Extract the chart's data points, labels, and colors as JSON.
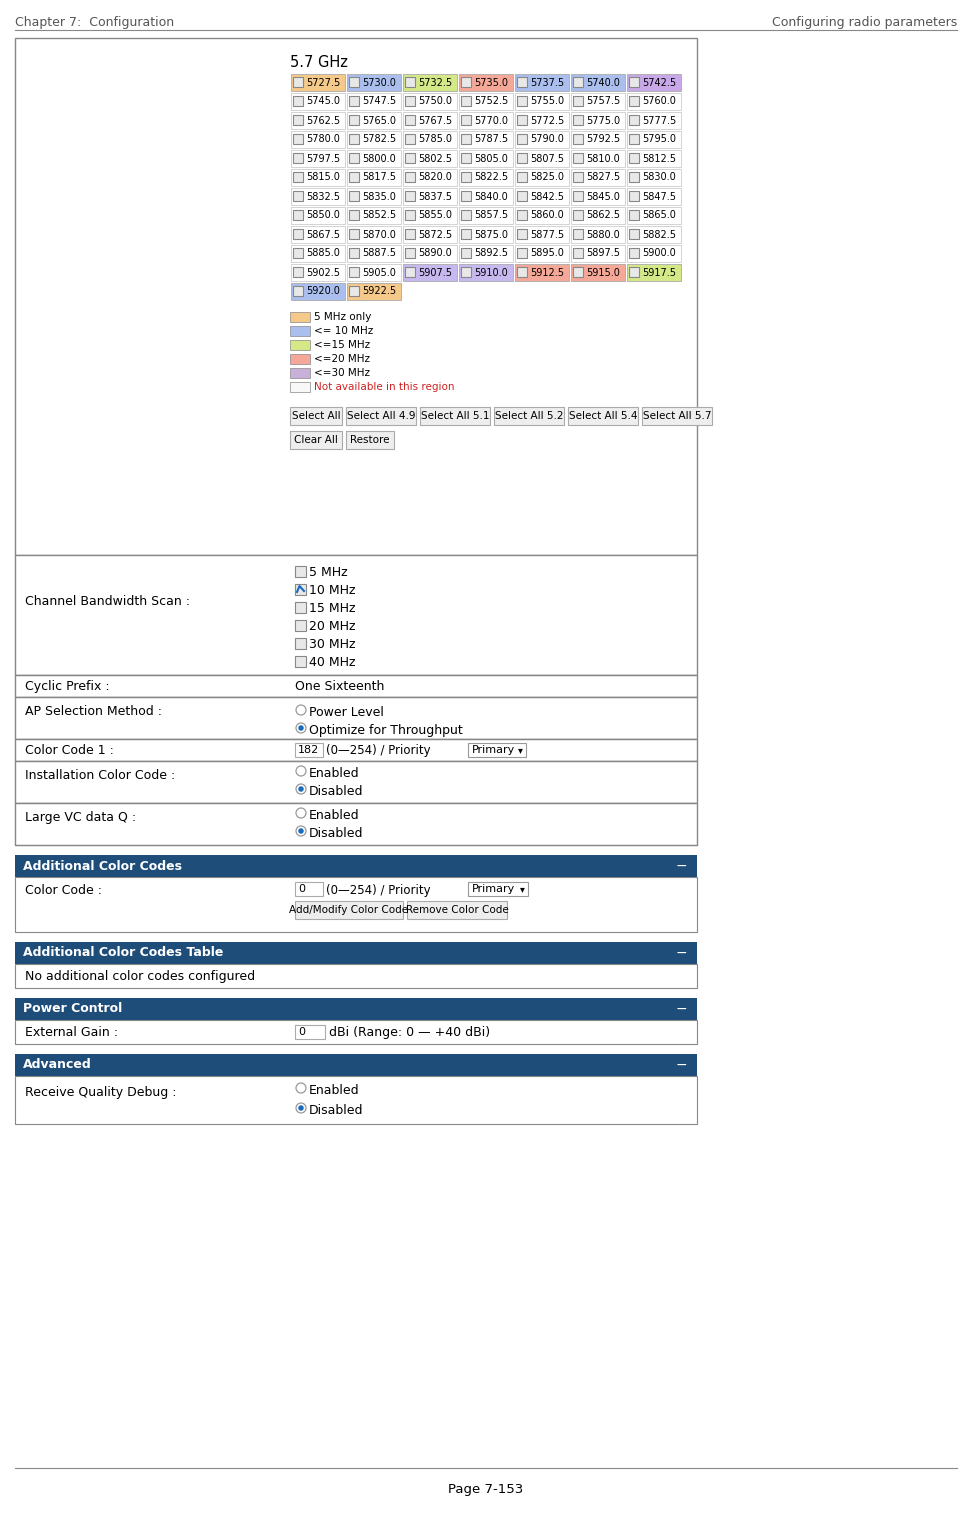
{
  "header_left": "Chapter 7:  Configuration",
  "header_right": "Configuring radio parameters",
  "footer": "Page 7-153",
  "section_title": "5.7 GHz",
  "freq_rows": [
    [
      "5727.5",
      "5730.0",
      "5732.5",
      "5735.0",
      "5737.5",
      "5740.0",
      "5742.5"
    ],
    [
      "5745.0",
      "5747.5",
      "5750.0",
      "5752.5",
      "5755.0",
      "5757.5",
      "5760.0"
    ],
    [
      "5762.5",
      "5765.0",
      "5767.5",
      "5770.0",
      "5772.5",
      "5775.0",
      "5777.5"
    ],
    [
      "5780.0",
      "5782.5",
      "5785.0",
      "5787.5",
      "5790.0",
      "5792.5",
      "5795.0"
    ],
    [
      "5797.5",
      "5800.0",
      "5802.5",
      "5805.0",
      "5807.5",
      "5810.0",
      "5812.5"
    ],
    [
      "5815.0",
      "5817.5",
      "5820.0",
      "5822.5",
      "5825.0",
      "5827.5",
      "5830.0"
    ],
    [
      "5832.5",
      "5835.0",
      "5837.5",
      "5840.0",
      "5842.5",
      "5845.0",
      "5847.5"
    ],
    [
      "5850.0",
      "5852.5",
      "5855.0",
      "5857.5",
      "5860.0",
      "5862.5",
      "5865.0"
    ],
    [
      "5867.5",
      "5870.0",
      "5872.5",
      "5875.0",
      "5877.5",
      "5880.0",
      "5882.5"
    ],
    [
      "5885.0",
      "5887.5",
      "5890.0",
      "5892.5",
      "5895.0",
      "5897.5",
      "5900.0"
    ],
    [
      "5902.5",
      "5905.0",
      "5907.5",
      "5910.0",
      "5912.5",
      "5915.0",
      "5917.5"
    ],
    [
      "5920.0",
      "5922.5"
    ]
  ],
  "freq_colors": [
    [
      "#f5c98a",
      "#aabfee",
      "#d4e888",
      "#f5a898",
      "#aabfee",
      "#aabfee",
      "#c8a8e8"
    ],
    [
      "",
      "",
      "",
      "",
      "",
      "",
      ""
    ],
    [
      "",
      "",
      "",
      "",
      "",
      "",
      ""
    ],
    [
      "",
      "",
      "",
      "",
      "",
      "",
      ""
    ],
    [
      "",
      "",
      "",
      "",
      "",
      "",
      ""
    ],
    [
      "",
      "",
      "",
      "",
      "",
      "",
      ""
    ],
    [
      "",
      "",
      "",
      "",
      "",
      "",
      ""
    ],
    [
      "",
      "",
      "",
      "",
      "",
      "",
      ""
    ],
    [
      "",
      "",
      "",
      "",
      "",
      "",
      ""
    ],
    [
      "",
      "",
      "",
      "",
      "",
      "",
      ""
    ],
    [
      "",
      "",
      "#c8b8f0",
      "#c8b8f0",
      "#f5a898",
      "#f5a898",
      "#d4e888"
    ],
    [
      "#aabfee",
      "#f5c98a"
    ]
  ],
  "legend_colors": [
    "#f5c98a",
    "#aabfee",
    "#d4e888",
    "#f5a898",
    "#c8b0d8",
    "#ffffff"
  ],
  "legend_texts": [
    "5 MHz only",
    "<= 10 MHz",
    "<=15 MHz",
    "<=20 MHz",
    "<=30 MHz",
    "Not available in this region"
  ],
  "legend_text_colors": [
    "black",
    "black",
    "black",
    "black",
    "black",
    "#cc2222"
  ],
  "select_buttons": [
    "Select All",
    "Select All 4.9",
    "Select All 5.1",
    "Select All 5.2",
    "Select All 5.4",
    "Select All 5.7"
  ],
  "bandwidth_options": [
    "5 MHz",
    "10 MHz",
    "15 MHz",
    "20 MHz",
    "30 MHz",
    "40 MHz"
  ],
  "bandwidth_checked": [
    false,
    true,
    false,
    false,
    false,
    false
  ],
  "cyclic_prefix_label": "Cyclic Prefix :",
  "cyclic_prefix_value": "One Sixteenth",
  "ap_selection_label": "AP Selection Method :",
  "ap_options": [
    "Power Level",
    "Optimize for Throughput"
  ],
  "ap_selected": 1,
  "color_code1_label": "Color Code 1 :",
  "color_code1_value": "182",
  "color_code1_range": "(0—254) / Priority",
  "color_code1_dropdown": "Primary",
  "install_color_label": "Installation Color Code :",
  "install_options": [
    "Enabled",
    "Disabled"
  ],
  "install_selected": 1,
  "large_vc_label": "Large VC data Q :",
  "large_vc_options": [
    "Enabled",
    "Disabled"
  ],
  "large_vc_selected": 1,
  "additional_color_header": "Additional Color Codes",
  "color_code_label": "Color Code :",
  "color_code_val": "0",
  "color_code_range": "(0—254) / Priority",
  "color_code_dropdown": "Primary",
  "color_code_buttons": [
    "Add/Modify Color Code",
    "Remove Color Code"
  ],
  "additional_table_header": "Additional Color Codes Table",
  "additional_table_text": "No additional color codes configured",
  "power_control_header": "Power Control",
  "external_gain_label": "External Gain :",
  "external_gain_val": "0",
  "external_gain_range": "dBi (Range: 0 — +40 dBi)",
  "advanced_header": "Advanced",
  "receive_quality_label": "Receive Quality Debug :",
  "receive_quality_options": [
    "Enabled",
    "Disabled"
  ],
  "receive_quality_selected": 1,
  "bg_color": "#ffffff",
  "header_bg": "#1e4d7a",
  "header_text_color": "#ffffff",
  "section_border": "#888888",
  "row_divider": "#cccccc"
}
